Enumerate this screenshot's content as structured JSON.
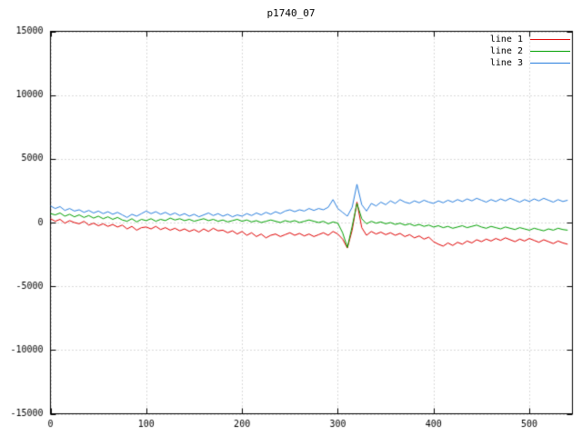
{
  "title": "p1740_07",
  "chart_data": {
    "type": "line",
    "title": "p1740_07",
    "xlabel": "",
    "ylabel": "",
    "x_range": [
      0,
      545
    ],
    "y_range": [
      -15000,
      15000
    ],
    "x_ticks": [
      0,
      100,
      200,
      300,
      400,
      500
    ],
    "y_ticks": [
      -15000,
      -10000,
      -5000,
      0,
      5000,
      10000,
      15000
    ],
    "grid": true,
    "grid_style": "dotted",
    "legend_position": "top-right",
    "border_color": "#000000",
    "grid_color": "#b4b4b4",
    "x": [
      0,
      5,
      10,
      15,
      20,
      25,
      30,
      35,
      40,
      45,
      50,
      55,
      60,
      65,
      70,
      75,
      80,
      85,
      90,
      95,
      100,
      105,
      110,
      115,
      120,
      125,
      130,
      135,
      140,
      145,
      150,
      155,
      160,
      165,
      170,
      175,
      180,
      185,
      190,
      195,
      200,
      205,
      210,
      215,
      220,
      225,
      230,
      235,
      240,
      245,
      250,
      255,
      260,
      265,
      270,
      275,
      280,
      285,
      290,
      295,
      300,
      305,
      310,
      315,
      320,
      325,
      330,
      335,
      340,
      345,
      350,
      355,
      360,
      365,
      370,
      375,
      380,
      385,
      390,
      395,
      400,
      405,
      410,
      415,
      420,
      425,
      430,
      435,
      440,
      445,
      450,
      455,
      460,
      465,
      470,
      475,
      480,
      485,
      490,
      495,
      500,
      505,
      510,
      515,
      520,
      525,
      530,
      535,
      540
    ],
    "series": [
      {
        "name": "line 1",
        "color": "#e00000",
        "values": [
          300,
          100,
          250,
          -50,
          150,
          0,
          -100,
          100,
          -200,
          -50,
          -250,
          -100,
          -300,
          -150,
          -350,
          -200,
          -500,
          -300,
          -600,
          -400,
          -350,
          -500,
          -300,
          -550,
          -400,
          -600,
          -450,
          -650,
          -500,
          -700,
          -550,
          -750,
          -500,
          -700,
          -450,
          -650,
          -600,
          -800,
          -650,
          -900,
          -700,
          -1000,
          -800,
          -1100,
          -900,
          -1200,
          -1000,
          -900,
          -1100,
          -950,
          -800,
          -1000,
          -850,
          -1050,
          -900,
          -1100,
          -950,
          -800,
          -1000,
          -700,
          -900,
          -1300,
          -2000,
          -600,
          1600,
          -400,
          -1000,
          -700,
          -900,
          -750,
          -950,
          -800,
          -1000,
          -850,
          -1100,
          -950,
          -1200,
          -1050,
          -1300,
          -1150,
          -1500,
          -1700,
          -1850,
          -1600,
          -1800,
          -1550,
          -1700,
          -1450,
          -1600,
          -1350,
          -1500,
          -1300,
          -1450,
          -1250,
          -1400,
          -1200,
          -1350,
          -1500,
          -1300,
          -1450,
          -1250,
          -1400,
          -1550,
          -1350,
          -1500,
          -1650,
          -1450,
          -1600,
          -1700
        ]
      },
      {
        "name": "line 2",
        "color": "#00a000",
        "values": [
          700,
          600,
          750,
          500,
          650,
          450,
          600,
          400,
          550,
          350,
          500,
          300,
          450,
          250,
          400,
          200,
          100,
          300,
          50,
          250,
          150,
          300,
          100,
          250,
          150,
          350,
          200,
          300,
          150,
          250,
          100,
          200,
          300,
          150,
          250,
          100,
          200,
          50,
          150,
          250,
          100,
          200,
          50,
          150,
          0,
          100,
          200,
          100,
          0,
          150,
          50,
          150,
          0,
          100,
          200,
          100,
          0,
          100,
          -100,
          50,
          -50,
          -800,
          -1950,
          -300,
          1500,
          300,
          -100,
          100,
          -50,
          50,
          -100,
          0,
          -150,
          -50,
          -200,
          -100,
          -250,
          -150,
          -300,
          -200,
          -350,
          -250,
          -400,
          -300,
          -450,
          -350,
          -250,
          -400,
          -300,
          -200,
          -350,
          -450,
          -300,
          -400,
          -500,
          -350,
          -450,
          -550,
          -400,
          -500,
          -600,
          -450,
          -550,
          -650,
          -500,
          -600,
          -450,
          -550,
          -600
        ]
      },
      {
        "name": "line 3",
        "color": "#2a7fde",
        "values": [
          1300,
          1100,
          1250,
          950,
          1100,
          900,
          1000,
          800,
          950,
          750,
          900,
          700,
          850,
          650,
          800,
          600,
          400,
          650,
          500,
          700,
          900,
          700,
          850,
          650,
          800,
          600,
          750,
          550,
          700,
          500,
          650,
          450,
          600,
          750,
          550,
          700,
          500,
          650,
          450,
          600,
          500,
          700,
          550,
          750,
          600,
          800,
          650,
          850,
          700,
          900,
          1000,
          850,
          1000,
          900,
          1100,
          950,
          1100,
          1000,
          1200,
          1800,
          1100,
          800,
          500,
          1200,
          3000,
          1400,
          900,
          1500,
          1300,
          1600,
          1400,
          1700,
          1500,
          1800,
          1600,
          1500,
          1700,
          1550,
          1750,
          1600,
          1500,
          1700,
          1550,
          1750,
          1600,
          1800,
          1650,
          1850,
          1700,
          1900,
          1750,
          1600,
          1800,
          1650,
          1850,
          1700,
          1900,
          1750,
          1600,
          1800,
          1650,
          1850,
          1700,
          1900,
          1750,
          1600,
          1800,
          1650,
          1750
        ]
      }
    ]
  }
}
